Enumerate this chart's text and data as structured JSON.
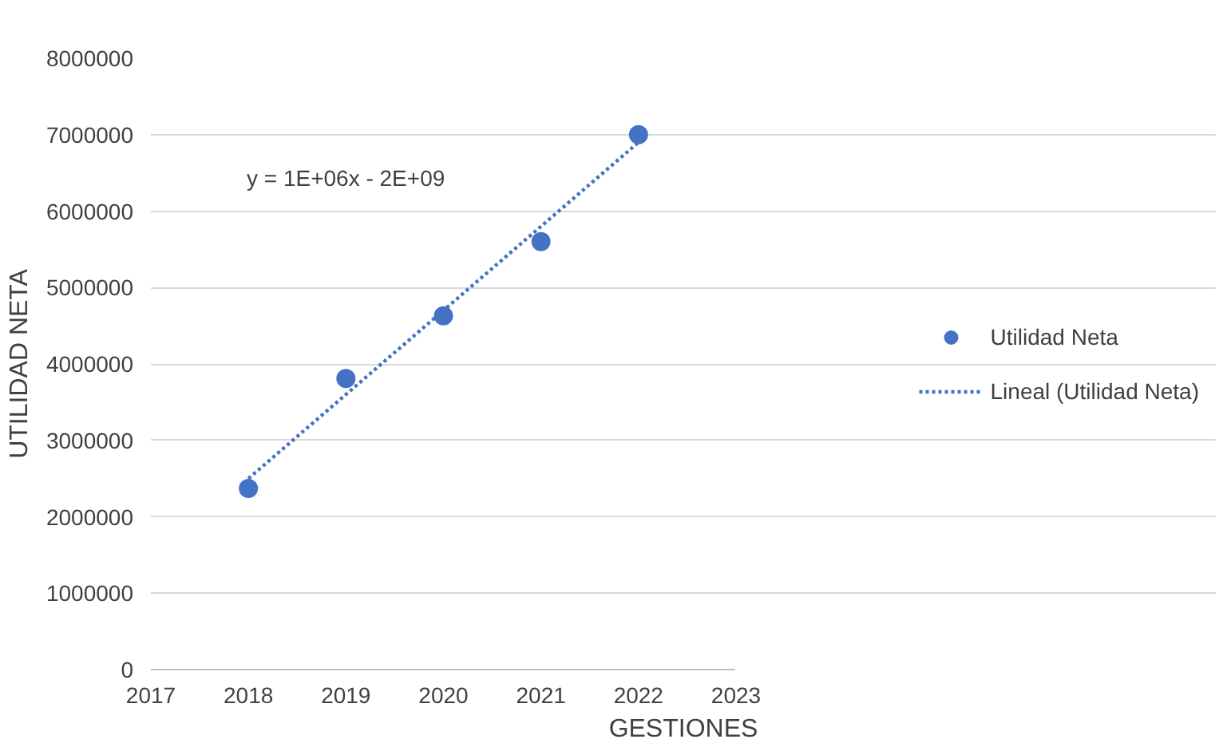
{
  "chart_data": {
    "type": "scatter",
    "xlabel": "GESTIONES",
    "ylabel": "UTILIDAD NETA",
    "x": [
      2018,
      2019,
      2020,
      2021,
      2022
    ],
    "series": [
      {
        "name": "Utilidad Neta",
        "color": "#4472c4",
        "marker": "circle",
        "values": [
          2370000,
          3810000,
          4630000,
          5600000,
          7000000
        ]
      },
      {
        "name": "Lineal (Utilidad Neta)",
        "color": "#4472c4",
        "type": "line",
        "line_style": "dotted",
        "x": [
          2018,
          2022
        ],
        "values": [
          2500000,
          6900000
        ]
      }
    ],
    "annotations": [
      "y = 1E+06x - 2E+09"
    ],
    "xlim": [
      2017,
      2023
    ],
    "xticks": [
      2017,
      2018,
      2019,
      2020,
      2021,
      2022,
      2023
    ],
    "ylim": [
      0,
      8000000
    ],
    "yticks": [
      0,
      1000000,
      2000000,
      3000000,
      4000000,
      5000000,
      6000000,
      7000000,
      8000000
    ],
    "grid": "y",
    "legend": "right"
  }
}
